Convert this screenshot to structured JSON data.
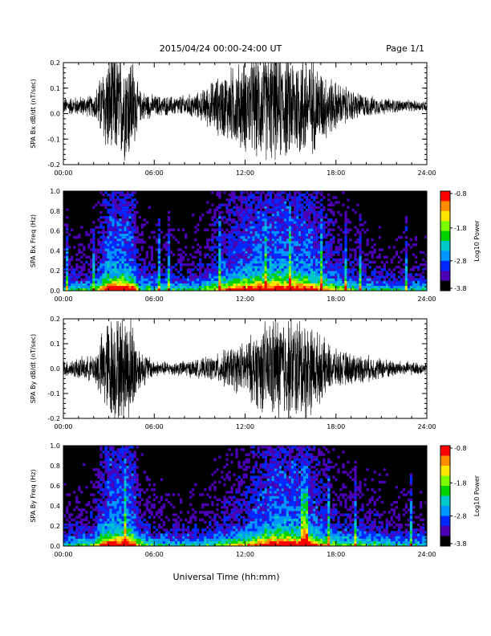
{
  "header": {
    "date_range": "2015/04/24  00:00-24:00 UT",
    "page": "Page 1/1"
  },
  "footer": {
    "xlabel": "Universal Time (hh:mm)"
  },
  "colorbar": {
    "label": "Log10 Power",
    "ticks": [
      "-0.8",
      "-1.8",
      "-2.8",
      "-3.8"
    ],
    "colors": [
      "#ff0000",
      "#ff8c00",
      "#ffe600",
      "#7cff00",
      "#00d200",
      "#00c8c8",
      "#0096ff",
      "#0028ff",
      "#4b00b4",
      "#000000"
    ]
  },
  "chart_data": [
    {
      "type": "line",
      "title": "",
      "ylabel": "SPA Bx dB/dt (nT/sec)",
      "xlabel": "",
      "xlim": [
        "00:00",
        "24:00"
      ],
      "ylim": [
        -0.2,
        0.2
      ],
      "x_ticks": [
        "00:00",
        "06:00",
        "12:00",
        "18:00",
        "24:00"
      ],
      "y_ticks": [
        "-0.2",
        "-0.1",
        "0.0",
        "0.1",
        "0.2"
      ],
      "series": [
        {
          "hours": [
            0,
            1,
            2,
            3,
            3.5,
            4,
            4.5,
            5,
            6,
            7,
            8,
            9,
            10,
            11,
            12,
            13,
            14,
            15,
            16,
            17,
            18,
            19,
            20,
            21,
            22,
            23,
            24
          ],
          "amplitude": [
            0.03,
            0.035,
            0.04,
            0.2,
            0.2,
            0.2,
            0.2,
            0.06,
            0.04,
            0.035,
            0.04,
            0.05,
            0.1,
            0.14,
            0.17,
            0.2,
            0.2,
            0.2,
            0.2,
            0.14,
            0.09,
            0.06,
            0.04,
            0.03,
            0.025,
            0.02,
            0.02
          ],
          "offset": 0.03
        }
      ]
    },
    {
      "type": "heatmap",
      "title": "",
      "ylabel": "SPA Bx Freq (Hz)",
      "xlabel": "",
      "xlim": [
        "00:00",
        "24:00"
      ],
      "ylim": [
        0.0,
        1.0
      ],
      "x_ticks": [
        "00:00",
        "06:00",
        "12:00",
        "18:00",
        "24:00"
      ],
      "y_ticks": [
        "0.0",
        "0.2",
        "0.4",
        "0.6",
        "0.8",
        "1.0"
      ],
      "zlim": [
        -3.8,
        -0.8
      ]
    },
    {
      "type": "line",
      "title": "",
      "ylabel": "SPA By dB/dt (nT/sec)",
      "xlabel": "",
      "xlim": [
        "00:00",
        "24:00"
      ],
      "ylim": [
        -0.2,
        0.2
      ],
      "x_ticks": [
        "00:00",
        "06:00",
        "12:00",
        "18:00",
        "24:00"
      ],
      "y_ticks": [
        "-0.2",
        "-0.1",
        "0.0",
        "0.1",
        "0.2"
      ],
      "series": [
        {
          "hours": [
            0,
            1,
            2,
            3,
            3.5,
            4,
            4.5,
            5,
            6,
            7,
            8,
            9,
            10,
            11,
            12,
            13,
            14,
            15,
            16,
            17,
            18,
            19,
            20,
            21,
            22,
            23,
            24
          ],
          "amplitude": [
            0.03,
            0.04,
            0.05,
            0.2,
            0.2,
            0.2,
            0.2,
            0.08,
            0.03,
            0.025,
            0.03,
            0.035,
            0.05,
            0.08,
            0.1,
            0.16,
            0.2,
            0.2,
            0.19,
            0.12,
            0.07,
            0.06,
            0.05,
            0.04,
            0.03,
            0.025,
            0.02
          ],
          "offset": 0.0
        }
      ]
    },
    {
      "type": "heatmap",
      "title": "",
      "ylabel": "SPA By Freq (Hz)",
      "xlabel": "",
      "xlim": [
        "00:00",
        "24:00"
      ],
      "ylim": [
        0.0,
        1.0
      ],
      "x_ticks": [
        "00:00",
        "06:00",
        "12:00",
        "18:00",
        "24:00"
      ],
      "y_ticks": [
        "0.0",
        "0.2",
        "0.4",
        "0.6",
        "0.8",
        "1.0"
      ],
      "zlim": [
        -3.8,
        -0.8
      ]
    }
  ]
}
